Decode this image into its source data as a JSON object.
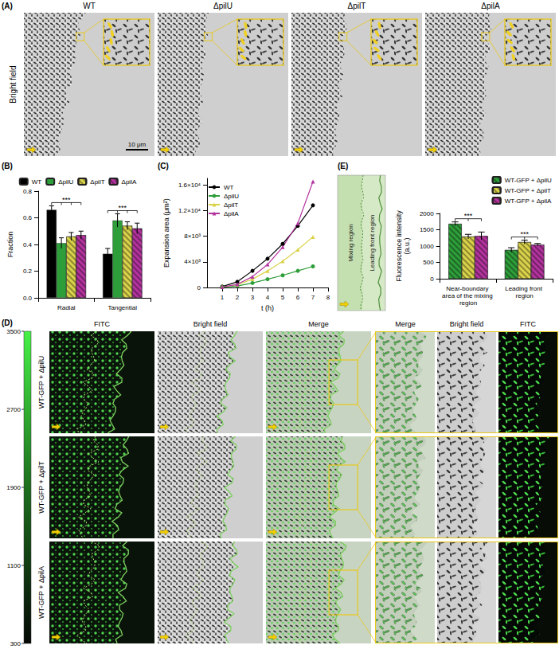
{
  "image_panels": {
    "A": {
      "letter": "(A)",
      "row_label": "Bright field",
      "columns": [
        "WT",
        "ΔpilU",
        "ΔpilT",
        "ΔpilA"
      ],
      "scale_bar": "10 μm"
    },
    "D": {
      "letter": "(D)",
      "columns": [
        "FITC",
        "Bright field",
        "Merge",
        "Merge",
        "Bright field",
        "FITC"
      ],
      "rows": [
        "WT-GFP + ΔpilU",
        "WT-GFP + ΔpilT",
        "WT-GFP + ΔpilA"
      ],
      "colorbar": {
        "range": [
          300,
          3500
        ],
        "ticks": [
          300,
          1100,
          1900,
          2700,
          3500
        ]
      }
    }
  },
  "chart_data": [
    {
      "panel": "(B)",
      "type": "bar",
      "categories": [
        "Radial",
        "Tangential"
      ],
      "y_label": "Fraction",
      "ylim": [
        0,
        0.8
      ],
      "yticks": [
        {
          "value": 0,
          "label": "0.0"
        },
        0.2,
        0.4,
        0.6,
        0.8
      ],
      "grid": false,
      "legend": "top",
      "series": [
        {
          "name": "WT",
          "color": "#000000",
          "values": [
            0.66,
            0.33
          ],
          "errors": [
            0.03,
            0.04
          ]
        },
        {
          "name": "ΔpilU",
          "color": "#2e9e3a",
          "values": [
            0.41,
            0.58
          ],
          "errors": [
            0.04,
            0.05
          ]
        },
        {
          "name": "ΔpilT",
          "color": "#d9d24a",
          "values": [
            0.46,
            0.54
          ],
          "errors": [
            0.03,
            0.03
          ]
        },
        {
          "name": "ΔpilA",
          "color": "#b3339e",
          "values": [
            0.47,
            0.52
          ],
          "errors": [
            0.03,
            0.04
          ]
        }
      ],
      "annotations": [
        {
          "text": "***",
          "category": "Radial"
        },
        {
          "text": "***",
          "category": "Tangential"
        }
      ]
    },
    {
      "panel": "(C)",
      "type": "line",
      "x_label": "t (h)",
      "y_label": "Expansion area (μm²)",
      "xlim": [
        0,
        8
      ],
      "xticks": [
        1,
        2,
        3,
        4,
        5,
        6,
        7,
        8
      ],
      "ylim": [
        0,
        17000
      ],
      "yticks": [
        0,
        {
          "value": 4000,
          "label": "4×10³"
        },
        {
          "value": 8000,
          "label": "8×10³"
        },
        {
          "value": 12000,
          "label": "1.2×10⁴"
        },
        {
          "value": 16000,
          "label": "1.6×10⁴"
        }
      ],
      "grid": false,
      "legend": "top-left",
      "x": [
        1,
        2,
        3,
        4,
        5,
        6,
        7
      ],
      "series": [
        {
          "name": "WT",
          "color": "#000000",
          "marker": "circle",
          "values": [
            150,
            900,
            2600,
            4500,
            6800,
            9600,
            12800
          ]
        },
        {
          "name": "ΔpilU",
          "color": "#2e9e3a",
          "marker": "circle",
          "values": [
            50,
            250,
            700,
            1300,
            1900,
            2600,
            3300
          ]
        },
        {
          "name": "ΔpilT",
          "color": "#d9d24a",
          "marker": "triangle",
          "values": [
            100,
            450,
            1300,
            2600,
            4100,
            5900,
            7900
          ]
        },
        {
          "name": "ΔpilA",
          "color": "#b3339e",
          "marker": "triangle",
          "values": [
            80,
            500,
            1700,
            3600,
            6300,
            10000,
            16500
          ]
        }
      ]
    },
    {
      "panel": "(E)",
      "type": "bar",
      "image_regions": [
        "Mixing region",
        "Leading front region"
      ],
      "categories": [
        "Near-boundary area of the mixing region",
        "Leading front region"
      ],
      "y_label": "Fluorescence intensity (a.u.)",
      "ylim": [
        0,
        2000
      ],
      "yticks": [
        0,
        500,
        1000,
        1500,
        2000
      ],
      "grid": false,
      "legend": "top-right",
      "series": [
        {
          "name": "WT-GFP + ΔpilU",
          "color": "#2e9e3a",
          "values": [
            1680,
            880
          ],
          "errors": [
            60,
            70
          ]
        },
        {
          "name": "WT-GFP + ΔpilT",
          "color": "#d9d24a",
          "values": [
            1290,
            1120
          ],
          "errors": [
            70,
            60
          ]
        },
        {
          "name": "WT-GFP + ΔpilA",
          "color": "#b3339e",
          "values": [
            1310,
            1040
          ],
          "errors": [
            120,
            40
          ]
        }
      ],
      "annotations": [
        {
          "text": "***",
          "category": "Near-boundary area of the mixing region"
        },
        {
          "text": "***",
          "category": "Leading front region"
        }
      ]
    }
  ]
}
